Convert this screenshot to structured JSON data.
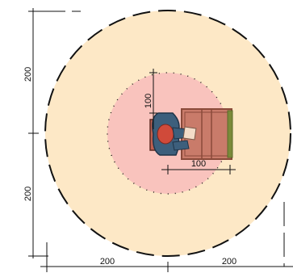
{
  "dimensions": {
    "left_upper": "200",
    "left_lower": "200",
    "bottom_left": "200",
    "bottom_right": "200",
    "inner_vertical": "100",
    "inner_horizontal": "100"
  },
  "colors": {
    "outer_zone": "#fde8c6",
    "inner_zone": "#f9c3bd",
    "bed_fill": "#c97b6a",
    "bed_frame": "#8a4a3a",
    "person_blue": "#3d5f7c",
    "person_red": "#d04a3a",
    "dimension_line": "#111111"
  },
  "icons": {
    "person": "seated-person-icon",
    "bed": "hospital-bed-icon"
  }
}
